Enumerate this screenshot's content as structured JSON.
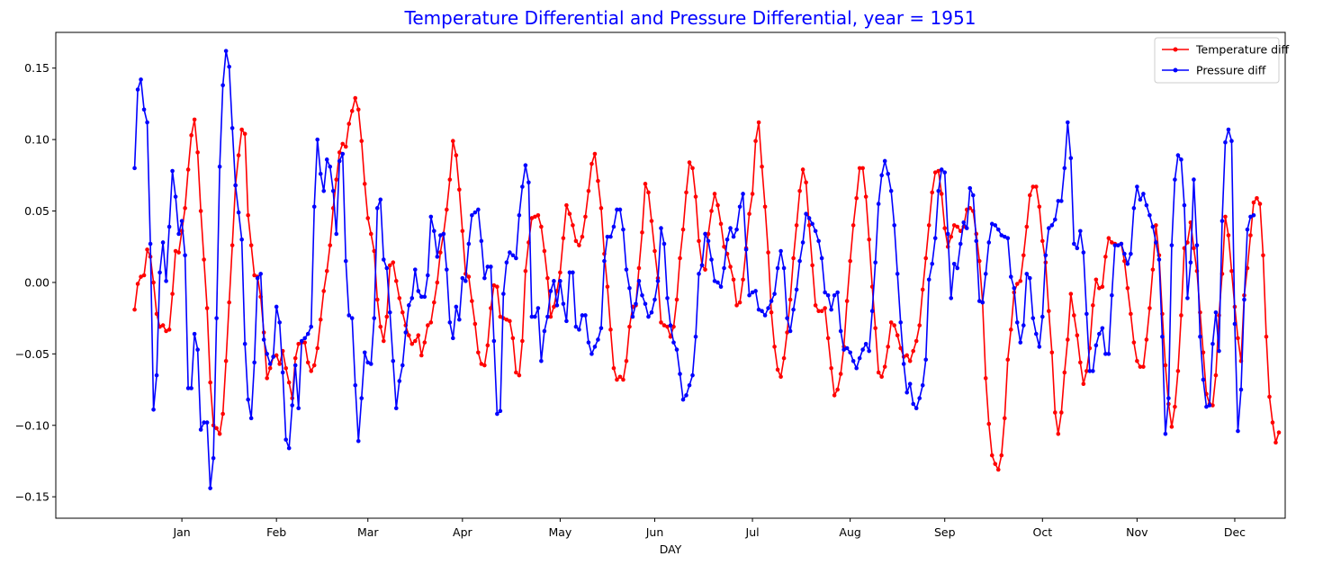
{
  "chart_data": {
    "type": "line",
    "title": "Temperature Differential and Pressure Differential, year = 1951",
    "title_color": "#0000ff",
    "xlabel": "DAY",
    "ylabel": "",
    "x_unit": "day of year",
    "xlim": [
      -25,
      365
    ],
    "ylim": [
      -0.165,
      0.175
    ],
    "x_ticks": [
      {
        "value": 15,
        "label": "Jan"
      },
      {
        "value": 45,
        "label": "Feb"
      },
      {
        "value": 74,
        "label": "Mar"
      },
      {
        "value": 104,
        "label": "Apr"
      },
      {
        "value": 135,
        "label": "May"
      },
      {
        "value": 165,
        "label": "Jun"
      },
      {
        "value": 196,
        "label": "Jul"
      },
      {
        "value": 227,
        "label": "Aug"
      },
      {
        "value": 257,
        "label": "Sep"
      },
      {
        "value": 288,
        "label": "Oct"
      },
      {
        "value": 318,
        "label": "Nov"
      },
      {
        "value": 349,
        "label": "Dec"
      }
    ],
    "y_ticks": [
      {
        "value": -0.15,
        "label": "−0.15"
      },
      {
        "value": -0.1,
        "label": "−0.10"
      },
      {
        "value": -0.05,
        "label": "−0.05"
      },
      {
        "value": 0.0,
        "label": "0.00"
      },
      {
        "value": 0.05,
        "label": "0.05"
      },
      {
        "value": 0.1,
        "label": "0.10"
      },
      {
        "value": 0.15,
        "label": "0.15"
      }
    ],
    "grid": false,
    "legend_position": "top-right",
    "series": [
      {
        "name": "Temperature diff",
        "color": "#ff0000",
        "marker": "circle",
        "start_day": 0,
        "step": 1,
        "values": [
          -0.019,
          -0.001,
          0.004,
          0.005,
          0.023,
          0.018,
          0.0,
          -0.022,
          -0.031,
          -0.03,
          -0.034,
          -0.033,
          -0.008,
          0.022,
          0.021,
          0.036,
          0.052,
          0.079,
          0.103,
          0.114,
          0.091,
          0.05,
          0.016,
          -0.018,
          -0.07,
          -0.1,
          -0.102,
          -0.106,
          -0.092,
          -0.055,
          -0.014,
          0.026,
          0.068,
          0.089,
          0.107,
          0.104,
          0.047,
          0.026,
          0.005,
          0.004,
          -0.01,
          -0.035,
          -0.067,
          -0.06,
          -0.052,
          -0.051,
          -0.057,
          -0.048,
          -0.06,
          -0.07,
          -0.081,
          -0.053,
          -0.043,
          -0.042,
          -0.042,
          -0.056,
          -0.062,
          -0.058,
          -0.046,
          -0.026,
          -0.006,
          0.008,
          0.026,
          0.052,
          0.072,
          0.091,
          0.097,
          0.095,
          0.111,
          0.12,
          0.129,
          0.121,
          0.099,
          0.069,
          0.045,
          0.034,
          0.022,
          -0.012,
          -0.031,
          -0.041,
          -0.024,
          0.012,
          0.014,
          0.001,
          -0.011,
          -0.021,
          -0.03,
          -0.037,
          -0.043,
          -0.041,
          -0.037,
          -0.051,
          -0.042,
          -0.03,
          -0.028,
          -0.014,
          0.0,
          0.021,
          0.034,
          0.051,
          0.072,
          0.099,
          0.089,
          0.065,
          0.036,
          0.006,
          0.004,
          -0.013,
          -0.029,
          -0.049,
          -0.057,
          -0.058,
          -0.044,
          -0.018,
          -0.002,
          -0.003,
          -0.024,
          -0.025,
          -0.026,
          -0.027,
          -0.039,
          -0.063,
          -0.065,
          -0.041,
          0.008,
          0.028,
          0.045,
          0.046,
          0.047,
          0.039,
          0.022,
          0.003,
          -0.024,
          -0.017,
          -0.006,
          0.007,
          0.031,
          0.054,
          0.048,
          0.04,
          0.029,
          0.026,
          0.032,
          0.046,
          0.064,
          0.083,
          0.09,
          0.071,
          0.052,
          0.02,
          -0.003,
          -0.033,
          -0.06,
          -0.068,
          -0.066,
          -0.068,
          -0.055,
          -0.031,
          -0.017,
          -0.016,
          0.01,
          0.035,
          0.069,
          0.063,
          0.043,
          0.022,
          0.003,
          -0.028,
          -0.03,
          -0.031,
          -0.038,
          -0.031,
          -0.012,
          0.017,
          0.037,
          0.063,
          0.084,
          0.08,
          0.06,
          0.029,
          0.012,
          0.009,
          0.034,
          0.05,
          0.062,
          0.054,
          0.041,
          0.025,
          0.02,
          0.011,
          0.002,
          -0.016,
          -0.014,
          0.002,
          0.024,
          0.048,
          0.062,
          0.099,
          0.112,
          0.081,
          0.053,
          0.021,
          -0.021,
          -0.045,
          -0.061,
          -0.066,
          -0.053,
          -0.035,
          -0.012,
          0.017,
          0.04,
          0.064,
          0.079,
          0.07,
          0.04,
          0.012,
          -0.016,
          -0.02,
          -0.02,
          -0.018,
          -0.039,
          -0.06,
          -0.079,
          -0.075,
          -0.064,
          -0.045,
          -0.013,
          0.015,
          0.04,
          0.059,
          0.08,
          0.08,
          0.06,
          0.03,
          -0.003,
          -0.032,
          -0.063,
          -0.066,
          -0.059,
          -0.045,
          -0.028,
          -0.03,
          -0.037,
          -0.046,
          -0.052,
          -0.051,
          -0.055,
          -0.048,
          -0.041,
          -0.03,
          -0.005,
          0.017,
          0.04,
          0.063,
          0.077,
          0.078,
          0.062,
          0.038,
          0.025,
          0.032,
          0.04,
          0.039,
          0.036,
          0.039,
          0.051,
          0.052,
          0.05,
          0.034,
          0.015,
          -0.014,
          -0.067,
          -0.099,
          -0.121,
          -0.127,
          -0.131,
          -0.121,
          -0.095,
          -0.054,
          -0.033,
          -0.007,
          -0.001,
          0.001,
          0.019,
          0.039,
          0.061,
          0.067,
          0.067,
          0.053,
          0.029,
          0.014,
          -0.02,
          -0.049,
          -0.091,
          -0.106,
          -0.091,
          -0.063,
          -0.04,
          -0.008,
          -0.023,
          -0.037,
          -0.056,
          -0.071,
          -0.062,
          -0.046,
          -0.016,
          0.002,
          -0.004,
          -0.003,
          0.018,
          0.031,
          0.028,
          0.027,
          0.026,
          0.027,
          0.015,
          -0.004,
          -0.022,
          -0.042,
          -0.055,
          -0.059,
          -0.059,
          -0.04,
          -0.018,
          0.009,
          0.04,
          0.019,
          -0.022,
          -0.058,
          -0.085,
          -0.101,
          -0.087,
          -0.062,
          -0.023,
          0.024,
          0.028,
          0.042,
          0.024,
          0.008,
          -0.021,
          -0.049,
          -0.078,
          -0.085,
          -0.086,
          -0.065,
          -0.023,
          0.006,
          0.046,
          0.033,
          0.008,
          -0.017,
          -0.039,
          -0.055,
          -0.009,
          0.01,
          0.033,
          0.056,
          0.059,
          0.055,
          0.019,
          -0.038,
          -0.08,
          -0.098,
          -0.112,
          -0.105
        ]
      },
      {
        "name": "Pressure diff",
        "color": "#0000ff",
        "marker": "circle",
        "start_day": 0,
        "step": 1,
        "values": [
          0.08,
          0.135,
          0.142,
          0.121,
          0.112,
          0.027,
          -0.089,
          -0.065,
          0.007,
          0.028,
          0.001,
          0.039,
          0.078,
          0.06,
          0.034,
          0.043,
          0.019,
          -0.074,
          -0.074,
          -0.036,
          -0.047,
          -0.103,
          -0.098,
          -0.098,
          -0.144,
          -0.123,
          -0.025,
          0.081,
          0.138,
          0.162,
          0.151,
          0.108,
          0.068,
          0.049,
          0.03,
          -0.043,
          -0.082,
          -0.095,
          -0.056,
          0.003,
          0.006,
          -0.04,
          -0.05,
          -0.057,
          -0.052,
          -0.017,
          -0.028,
          -0.063,
          -0.11,
          -0.116,
          -0.086,
          -0.058,
          -0.088,
          -0.041,
          -0.039,
          -0.036,
          -0.031,
          0.053,
          0.1,
          0.076,
          0.064,
          0.086,
          0.081,
          0.064,
          0.034,
          0.085,
          0.09,
          0.015,
          -0.023,
          -0.025,
          -0.072,
          -0.111,
          -0.081,
          -0.049,
          -0.056,
          -0.057,
          -0.025,
          0.052,
          0.058,
          0.016,
          0.01,
          -0.021,
          -0.055,
          -0.088,
          -0.069,
          -0.058,
          -0.035,
          -0.016,
          -0.011,
          0.009,
          -0.006,
          -0.01,
          -0.01,
          0.005,
          0.046,
          0.036,
          0.018,
          0.033,
          0.034,
          0.009,
          -0.028,
          -0.039,
          -0.017,
          -0.026,
          0.003,
          0.001,
          0.027,
          0.047,
          0.049,
          0.051,
          0.029,
          0.003,
          0.011,
          0.011,
          -0.041,
          -0.092,
          -0.09,
          -0.008,
          0.014,
          0.021,
          0.019,
          0.017,
          0.047,
          0.067,
          0.082,
          0.07,
          -0.024,
          -0.024,
          -0.018,
          -0.055,
          -0.034,
          -0.024,
          -0.006,
          0.001,
          -0.016,
          0.001,
          -0.015,
          -0.027,
          0.007,
          0.007,
          -0.031,
          -0.033,
          -0.023,
          -0.023,
          -0.042,
          -0.05,
          -0.045,
          -0.04,
          -0.032,
          0.015,
          0.032,
          0.032,
          0.039,
          0.051,
          0.051,
          0.037,
          0.009,
          -0.004,
          -0.024,
          -0.015,
          0.001,
          -0.009,
          -0.015,
          -0.024,
          -0.021,
          -0.012,
          0.001,
          0.038,
          0.027,
          -0.011,
          -0.03,
          -0.042,
          -0.047,
          -0.064,
          -0.082,
          -0.079,
          -0.072,
          -0.065,
          -0.038,
          0.006,
          0.012,
          0.034,
          0.029,
          0.016,
          0.001,
          0.0,
          -0.003,
          0.01,
          0.03,
          0.038,
          0.032,
          0.037,
          0.053,
          0.062,
          0.023,
          -0.009,
          -0.007,
          -0.006,
          -0.019,
          -0.02,
          -0.023,
          -0.018,
          -0.013,
          -0.008,
          0.01,
          0.022,
          0.01,
          -0.025,
          -0.034,
          -0.019,
          -0.005,
          0.015,
          0.028,
          0.048,
          0.045,
          0.041,
          0.036,
          0.029,
          0.017,
          -0.007,
          -0.009,
          -0.019,
          -0.009,
          -0.007,
          -0.034,
          -0.047,
          -0.046,
          -0.049,
          -0.055,
          -0.06,
          -0.053,
          -0.047,
          -0.043,
          -0.048,
          -0.02,
          0.014,
          0.055,
          0.075,
          0.085,
          0.076,
          0.064,
          0.04,
          0.006,
          -0.028,
          -0.057,
          -0.077,
          -0.071,
          -0.085,
          -0.088,
          -0.081,
          -0.072,
          -0.054,
          0.002,
          0.013,
          0.031,
          0.064,
          0.079,
          0.077,
          0.034,
          -0.011,
          0.013,
          0.01,
          0.027,
          0.042,
          0.038,
          0.066,
          0.061,
          0.029,
          -0.013,
          -0.014,
          0.006,
          0.028,
          0.041,
          0.04,
          0.037,
          0.033,
          0.032,
          0.031,
          0.004,
          -0.004,
          -0.028,
          -0.042,
          -0.03,
          0.006,
          0.003,
          -0.025,
          -0.036,
          -0.045,
          -0.024,
          0.019,
          0.038,
          0.04,
          0.044,
          0.057,
          0.057,
          0.08,
          0.112,
          0.087,
          0.027,
          0.024,
          0.036,
          0.021,
          -0.022,
          -0.062,
          -0.062,
          -0.044,
          -0.036,
          -0.032,
          -0.05,
          -0.05,
          -0.009,
          0.026,
          0.026,
          0.027,
          0.02,
          0.013,
          0.02,
          0.052,
          0.067,
          0.058,
          0.062,
          0.054,
          0.047,
          0.039,
          0.028,
          0.016,
          -0.038,
          -0.106,
          -0.081,
          0.026,
          0.072,
          0.089,
          0.086,
          0.054,
          -0.011,
          0.014,
          0.072,
          0.026,
          -0.038,
          -0.068,
          -0.087,
          -0.086,
          -0.043,
          -0.021,
          -0.048,
          0.043,
          0.098,
          0.107,
          0.099,
          -0.029,
          -0.104,
          -0.075,
          -0.012,
          0.037,
          0.046,
          0.047
        ]
      }
    ]
  }
}
